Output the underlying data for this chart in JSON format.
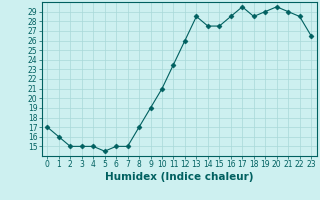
{
  "x": [
    0,
    1,
    2,
    3,
    4,
    5,
    6,
    7,
    8,
    9,
    10,
    11,
    12,
    13,
    14,
    15,
    16,
    17,
    18,
    19,
    20,
    21,
    22,
    23
  ],
  "y": [
    17,
    16,
    15,
    15,
    15,
    14.5,
    15,
    15,
    17,
    19,
    21,
    23.5,
    26,
    28.5,
    27.5,
    27.5,
    28.5,
    29.5,
    28.5,
    29,
    29.5,
    29,
    28.5,
    26.5
  ],
  "line_color": "#006060",
  "marker": "D",
  "marker_size": 2.5,
  "bg_color": "#cdf0f0",
  "grid_color": "#a8d8d8",
  "xlabel": "Humidex (Indice chaleur)",
  "ylim": [
    14.0,
    30.0
  ],
  "xlim": [
    -0.5,
    23.5
  ],
  "yticks": [
    15,
    16,
    17,
    18,
    19,
    20,
    21,
    22,
    23,
    24,
    25,
    26,
    27,
    28,
    29
  ],
  "xticks": [
    0,
    1,
    2,
    3,
    4,
    5,
    6,
    7,
    8,
    9,
    10,
    11,
    12,
    13,
    14,
    15,
    16,
    17,
    18,
    19,
    20,
    21,
    22,
    23
  ],
  "tick_label_fontsize": 5.5,
  "xlabel_fontsize": 7.5,
  "tick_color": "#006060",
  "spine_color": "#006060",
  "linewidth": 0.8
}
